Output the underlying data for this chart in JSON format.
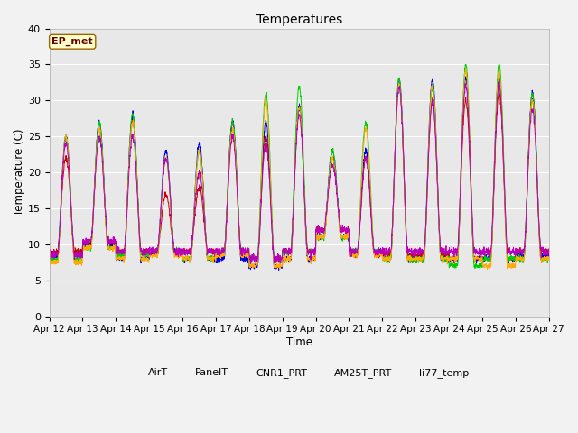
{
  "title": "Temperatures",
  "xlabel": "Time",
  "ylabel": "Temperature (C)",
  "ylim": [
    0,
    40
  ],
  "annotation": "EP_met",
  "series_names": [
    "AirT",
    "PanelT",
    "CNR1_PRT",
    "AM25T_PRT",
    "li77_temp"
  ],
  "series_colors": [
    "#cc0000",
    "#0000dd",
    "#00cc00",
    "#ffaa00",
    "#bb00bb"
  ],
  "background_color": "#e8e8e8",
  "grid_color": "#ffffff",
  "xtick_labels": [
    "Apr 12",
    "Apr 13",
    "Apr 14",
    "Apr 15",
    "Apr 16",
    "Apr 17",
    "Apr 18",
    "Apr 19",
    "Apr 20",
    "Apr 21",
    "Apr 22",
    "Apr 23",
    "Apr 24",
    "Apr 25",
    "Apr 26",
    "Apr 27"
  ],
  "n_days": 15,
  "pts_per_day": 144,
  "figsize": [
    6.4,
    4.8
  ],
  "dpi": 100
}
